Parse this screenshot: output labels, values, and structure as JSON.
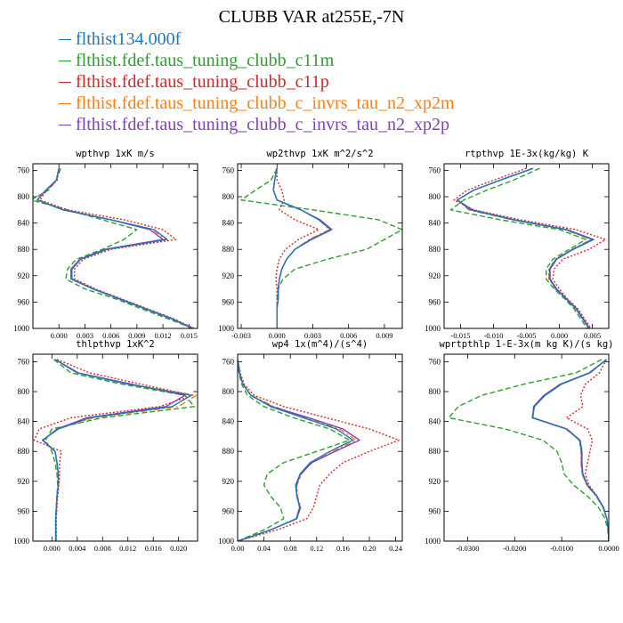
{
  "page": {
    "title": "CLUBB VAR at255E,-7N"
  },
  "legend": [
    {
      "label": "flthist134.000f",
      "color": "#1f77b4",
      "dash": "solid"
    },
    {
      "label": "flthist.fdef.taus_tuning_clubb_c11m",
      "color": "#2ca02c",
      "dash": "dashed"
    },
    {
      "label": "flthist.fdef.taus_tuning_clubb_c11p",
      "color": "#d62728",
      "dash": "dotted"
    },
    {
      "label": "flthist.fdef.taus_tuning_clubb_c_invrs_tau_n2_xp2m",
      "color": "#ff7f0e",
      "dash": "dashdot"
    },
    {
      "label": "flthist.fdef.taus_tuning_clubb_c_invrs_tau_n2_xp2p",
      "color": "#7f3fbf",
      "dash": "solid"
    }
  ],
  "chart_data": [
    {
      "type": "line",
      "title": "wpthvp  1xK m/s",
      "xlim": [
        -0.003,
        0.016
      ],
      "ylim": [
        1000,
        750
      ],
      "xticks": [
        0.0,
        0.003,
        0.006,
        0.009,
        0.012,
        0.015
      ],
      "xticklabels": [
        "0.000",
        "0.003",
        "0.006",
        "0.009",
        "0.012",
        "0.015"
      ],
      "yticks": [
        760,
        800,
        840,
        880,
        920,
        960,
        1000
      ],
      "y": [
        757,
        775,
        790,
        805,
        820,
        835,
        850,
        865,
        880,
        895,
        910,
        925,
        940,
        955,
        970,
        985,
        1000
      ],
      "series": [
        {
          "x": [
            0.0,
            -0.0003,
            -0.0015,
            -0.0025,
            0.0005,
            0.006,
            0.011,
            0.0125,
            0.0055,
            0.0025,
            0.0015,
            0.0015,
            0.004,
            0.007,
            0.01,
            0.013,
            0.0155
          ]
        },
        {
          "x": [
            0.0002,
            -0.0003,
            -0.0012,
            -0.0032,
            0.001,
            0.005,
            0.009,
            0.0075,
            0.005,
            0.002,
            0.001,
            0.0008,
            0.003,
            0.0065,
            0.0095,
            0.0125,
            0.0155
          ]
        },
        {
          "x": [
            0.0,
            -0.0002,
            -0.0014,
            -0.0022,
            0.001,
            0.0075,
            0.012,
            0.0135,
            0.006,
            0.0028,
            0.0018,
            0.0018,
            0.0042,
            0.0072,
            0.0102,
            0.0132,
            0.0156
          ]
        },
        {
          "x": [
            0.0,
            -0.0003,
            -0.0015,
            -0.0025,
            0.0005,
            0.006,
            0.0108,
            0.0123,
            0.0055,
            0.0025,
            0.0015,
            0.0015,
            0.004,
            0.007,
            0.01,
            0.013,
            0.0155
          ]
        },
        {
          "x": [
            0.0,
            -0.0003,
            -0.0015,
            -0.0025,
            0.0005,
            0.006,
            0.0105,
            0.012,
            0.0053,
            0.0024,
            0.0014,
            0.0014,
            0.0039,
            0.0069,
            0.0099,
            0.0129,
            0.0154
          ]
        }
      ]
    },
    {
      "type": "line",
      "title": "wp2thvp  1xK m^2/s^2",
      "xlim": [
        -0.0033,
        0.0105
      ],
      "ylim": [
        1000,
        750
      ],
      "xticks": [
        -0.003,
        0.0,
        0.003,
        0.006,
        0.009
      ],
      "xticklabels": [
        "-0.003",
        "0.000",
        "0.003",
        "0.006",
        "0.009"
      ],
      "yticks": [
        760,
        800,
        840,
        880,
        920,
        960,
        1000
      ],
      "y": [
        757,
        775,
        790,
        805,
        820,
        835,
        850,
        865,
        880,
        895,
        910,
        925,
        940,
        955,
        970,
        985,
        1000
      ],
      "series": [
        {
          "x": [
            0.0,
            -0.0002,
            -0.0003,
            0.0,
            0.002,
            0.0035,
            0.0045,
            0.0028,
            0.0015,
            0.0008,
            0.0004,
            0.0002,
            0.0001,
            0.0001,
            0.0,
            0.0,
            0.0
          ]
        },
        {
          "x": [
            0.0,
            -0.0005,
            -0.0018,
            -0.003,
            0.003,
            0.0085,
            0.0105,
            0.009,
            0.0075,
            0.0042,
            0.0015,
            0.0005,
            0.0001,
            0.0,
            0.0,
            0.0,
            0.0
          ]
        },
        {
          "x": [
            0.0,
            0.0,
            0.0004,
            0.0006,
            0.0002,
            0.0015,
            0.0035,
            0.0018,
            0.0007,
            0.0002,
            0.0,
            -0.0001,
            0.0,
            0.0,
            0.0,
            0.0,
            0.0
          ]
        },
        {
          "x": [
            0.0,
            -0.0002,
            -0.0003,
            0.0,
            0.002,
            0.0035,
            0.0044,
            0.0027,
            0.0015,
            0.0008,
            0.0004,
            0.0002,
            0.0001,
            0.0001,
            0.0,
            0.0,
            0.0
          ]
        },
        {
          "x": [
            0.0,
            -0.0002,
            -0.0003,
            0.0,
            0.002,
            0.0036,
            0.0046,
            0.0029,
            0.0015,
            0.0008,
            0.0004,
            0.0002,
            0.0001,
            0.0001,
            0.0,
            0.0,
            0.0
          ]
        }
      ]
    },
    {
      "type": "line",
      "title": "rtpthvp  1E-3x(kg/kg) K",
      "xlim": [
        -0.0175,
        0.0075
      ],
      "ylim": [
        1000,
        750
      ],
      "xticks": [
        -0.015,
        -0.01,
        -0.005,
        0.0,
        0.005
      ],
      "xticklabels": [
        "-0.015",
        "-0.010",
        "-0.005",
        "0.000",
        "0.005"
      ],
      "yticks": [
        760,
        800,
        840,
        880,
        920,
        960,
        1000
      ],
      "y": [
        757,
        775,
        790,
        805,
        820,
        835,
        850,
        865,
        880,
        895,
        910,
        925,
        940,
        955,
        970,
        985,
        1000
      ],
      "series": [
        {
          "x": [
            -0.004,
            -0.009,
            -0.013,
            -0.0155,
            -0.0135,
            -0.007,
            0.001,
            0.005,
            0.002,
            -0.0005,
            -0.0015,
            -0.0015,
            -0.0005,
            0.001,
            0.0025,
            0.0035,
            0.0045
          ]
        },
        {
          "x": [
            -0.003,
            -0.007,
            -0.011,
            -0.0145,
            -0.0165,
            -0.009,
            0.0,
            0.004,
            0.0015,
            -0.001,
            -0.002,
            -0.002,
            -0.0008,
            0.0008,
            0.0022,
            0.0032,
            0.0042
          ]
        },
        {
          "x": [
            -0.005,
            -0.01,
            -0.014,
            -0.016,
            -0.013,
            -0.006,
            0.0025,
            0.007,
            0.0045,
            0.0005,
            -0.0008,
            -0.001,
            0.0,
            0.0012,
            0.0028,
            0.0038,
            0.0048
          ]
        },
        {
          "x": [
            -0.004,
            -0.009,
            -0.013,
            -0.0155,
            -0.0138,
            -0.0072,
            0.0008,
            0.0048,
            0.0019,
            -0.0006,
            -0.0016,
            -0.0016,
            -0.0006,
            0.001,
            0.0025,
            0.0035,
            0.0045
          ]
        },
        {
          "x": [
            -0.004,
            -0.009,
            -0.013,
            -0.0155,
            -0.0132,
            -0.0068,
            0.0012,
            0.0052,
            0.0021,
            -0.0004,
            -0.0014,
            -0.0014,
            -0.0004,
            0.0011,
            0.0026,
            0.0036,
            0.0046
          ]
        }
      ]
    },
    {
      "type": "line",
      "title": "thlpthvp  1xK^2",
      "xlim": [
        -0.003,
        0.023
      ],
      "ylim": [
        1000,
        750
      ],
      "xticks": [
        0.0,
        0.004,
        0.008,
        0.012,
        0.016,
        0.02
      ],
      "xticklabels": [
        "0.000",
        "0.004",
        "0.008",
        "0.012",
        "0.016",
        "0.020"
      ],
      "yticks": [
        760,
        800,
        840,
        880,
        920,
        960,
        1000
      ],
      "y": [
        757,
        775,
        790,
        805,
        820,
        835,
        850,
        865,
        880,
        895,
        910,
        925,
        940,
        955,
        970,
        985,
        1000
      ],
      "series": [
        {
          "x": [
            0.0005,
            0.004,
            0.012,
            0.022,
            0.019,
            0.006,
            0.001,
            -0.0015,
            0.0005,
            0.0008,
            0.001,
            0.001,
            0.0008,
            0.0007,
            0.0006,
            0.0006,
            0.0006
          ]
        },
        {
          "x": [
            0.0003,
            0.003,
            0.011,
            0.021,
            0.0225,
            0.008,
            0.0,
            -0.001,
            0.0,
            0.0005,
            0.0008,
            0.0009,
            0.0008,
            0.0007,
            0.0006,
            0.0006,
            0.0006
          ]
        },
        {
          "x": [
            0.0008,
            0.006,
            0.014,
            0.0222,
            0.017,
            0.003,
            -0.002,
            -0.0028,
            0.0015,
            0.0012,
            0.0012,
            0.0011,
            0.0009,
            0.0008,
            0.0007,
            0.0007,
            0.0007
          ]
        },
        {
          "x": [
            0.0005,
            0.004,
            0.0122,
            0.0228,
            0.02,
            0.0065,
            0.001,
            -0.0015,
            0.0005,
            0.0008,
            0.001,
            0.001,
            0.0008,
            0.0007,
            0.0006,
            0.0006,
            0.0006
          ]
        },
        {
          "x": [
            0.0005,
            0.0042,
            0.0125,
            0.021,
            0.018,
            0.0055,
            0.0008,
            -0.0014,
            0.0005,
            0.0008,
            0.001,
            0.001,
            0.0008,
            0.0007,
            0.0006,
            0.0006,
            0.0006
          ]
        }
      ]
    },
    {
      "type": "line",
      "title": "wp4  1x(m^4)/(s^4)",
      "xlim": [
        0.0,
        0.25
      ],
      "ylim": [
        1000,
        750
      ],
      "xticks": [
        0.0,
        0.04,
        0.08,
        0.12,
        0.16,
        0.2,
        0.24
      ],
      "xticklabels": [
        "0.00",
        "0.04",
        "0.08",
        "0.12",
        "0.16",
        "0.20",
        "0.24"
      ],
      "yticks": [
        760,
        800,
        840,
        880,
        920,
        960,
        1000
      ],
      "y": [
        757,
        775,
        790,
        805,
        820,
        835,
        850,
        865,
        880,
        895,
        910,
        925,
        940,
        955,
        970,
        985,
        1000
      ],
      "series": [
        {
          "x": [
            0.0,
            0.003,
            0.008,
            0.02,
            0.05,
            0.1,
            0.15,
            0.175,
            0.14,
            0.11,
            0.095,
            0.088,
            0.09,
            0.095,
            0.09,
            0.05,
            0.0
          ]
        },
        {
          "x": [
            0.0,
            0.002,
            0.006,
            0.015,
            0.04,
            0.085,
            0.14,
            0.17,
            0.12,
            0.07,
            0.045,
            0.04,
            0.05,
            0.065,
            0.07,
            0.04,
            0.0
          ]
        },
        {
          "x": [
            0.0,
            0.004,
            0.01,
            0.025,
            0.07,
            0.135,
            0.2,
            0.245,
            0.2,
            0.16,
            0.14,
            0.125,
            0.12,
            0.115,
            0.105,
            0.06,
            0.0
          ]
        },
        {
          "x": [
            0.0,
            0.003,
            0.008,
            0.021,
            0.055,
            0.105,
            0.155,
            0.18,
            0.145,
            0.112,
            0.097,
            0.09,
            0.091,
            0.096,
            0.09,
            0.05,
            0.0
          ]
        },
        {
          "x": [
            0.0,
            0.003,
            0.008,
            0.02,
            0.052,
            0.108,
            0.16,
            0.185,
            0.148,
            0.113,
            0.096,
            0.089,
            0.09,
            0.094,
            0.089,
            0.05,
            0.0
          ]
        }
      ]
    },
    {
      "type": "line",
      "title": "wprtpthlp  1-E-3x(m kg K)/(s kg)",
      "xlim": [
        -0.035,
        0.0
      ],
      "ylim": [
        1000,
        750
      ],
      "xticks": [
        -0.03,
        -0.02,
        -0.01,
        0.0
      ],
      "xticklabels": [
        "-0.0300",
        "-0.0200",
        "-0.0100",
        "0.0000"
      ],
      "yticks": [
        760,
        800,
        840,
        880,
        920,
        960,
        1000
      ],
      "y": [
        757,
        775,
        790,
        805,
        820,
        835,
        850,
        865,
        880,
        895,
        910,
        925,
        940,
        955,
        970,
        985,
        1000
      ],
      "series": [
        {
          "x": [
            -0.0005,
            -0.004,
            -0.01,
            -0.0135,
            -0.0158,
            -0.0162,
            -0.009,
            -0.0062,
            -0.0058,
            -0.0058,
            -0.0056,
            -0.0046,
            -0.0026,
            -0.0012,
            -0.0004,
            -0.0001,
            0.0
          ]
        },
        {
          "x": [
            -0.0015,
            -0.007,
            -0.018,
            -0.027,
            -0.032,
            -0.034,
            -0.022,
            -0.014,
            -0.011,
            -0.01,
            -0.0095,
            -0.0075,
            -0.0045,
            -0.0022,
            -0.0008,
            -0.0002,
            0.0
          ]
        },
        {
          "x": [
            -0.0005,
            -0.002,
            -0.005,
            -0.006,
            -0.0055,
            -0.009,
            -0.0045,
            -0.0035,
            -0.004,
            -0.0045,
            -0.005,
            -0.0042,
            -0.0025,
            -0.0012,
            -0.0004,
            -0.0001,
            0.0
          ]
        },
        {
          "x": [
            -0.0005,
            -0.004,
            -0.0101,
            -0.0136,
            -0.0159,
            -0.0163,
            -0.0091,
            -0.0063,
            -0.0059,
            -0.0059,
            -0.0057,
            -0.0047,
            -0.0027,
            -0.0012,
            -0.0004,
            -0.0001,
            0.0
          ]
        },
        {
          "x": [
            -0.0005,
            -0.0042,
            -0.0103,
            -0.0138,
            -0.016,
            -0.0161,
            -0.0089,
            -0.0061,
            -0.0057,
            -0.0057,
            -0.0055,
            -0.0045,
            -0.0025,
            -0.0011,
            -0.0004,
            -0.0001,
            0.0
          ]
        }
      ]
    }
  ]
}
